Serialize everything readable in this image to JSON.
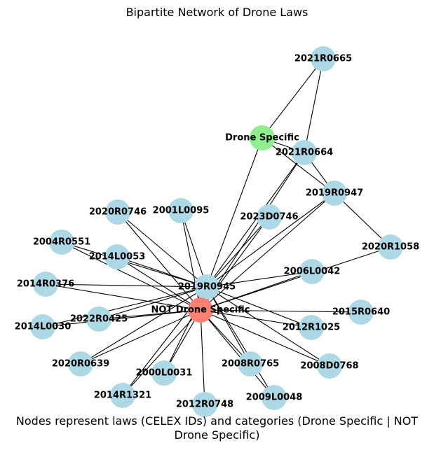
{
  "title": "Bipartite Network of Drone Laws",
  "caption_line1": "Nodes represent laws (CELEX IDs) and categories (Drone Specific | NOT",
  "caption_line2": "Drone Specific)",
  "colors": {
    "law_node": "#add8e6",
    "drone_specific": "#90ee90",
    "not_drone_specific": "#fa8072",
    "edge": "#000000"
  },
  "nodes": [
    {
      "id": "2021R0665",
      "category": "law"
    },
    {
      "id": "Drone Specific",
      "category": "drone_specific"
    },
    {
      "id": "2021R0664",
      "category": "law"
    },
    {
      "id": "2019R0947",
      "category": "law"
    },
    {
      "id": "2020R0746",
      "category": "law"
    },
    {
      "id": "2001L0095",
      "category": "law"
    },
    {
      "id": "2023D0746",
      "category": "law"
    },
    {
      "id": "2004R0551",
      "category": "law"
    },
    {
      "id": "2014L0053",
      "category": "law"
    },
    {
      "id": "2020R1058",
      "category": "law"
    },
    {
      "id": "2006L0042",
      "category": "law"
    },
    {
      "id": "2014R0376",
      "category": "law"
    },
    {
      "id": "2019R0945",
      "category": "law"
    },
    {
      "id": "NOT Drone Specific",
      "category": "not_drone_specific"
    },
    {
      "id": "2015R0640",
      "category": "law"
    },
    {
      "id": "2022R0425",
      "category": "law"
    },
    {
      "id": "2014L0030",
      "category": "law"
    },
    {
      "id": "2012R1025",
      "category": "law"
    },
    {
      "id": "2020R0639",
      "category": "law"
    },
    {
      "id": "2008R0765",
      "category": "law"
    },
    {
      "id": "2008D0768",
      "category": "law"
    },
    {
      "id": "2000L0031",
      "category": "law"
    },
    {
      "id": "2014R1321",
      "category": "law"
    },
    {
      "id": "2012R0748",
      "category": "law"
    },
    {
      "id": "2009L0048",
      "category": "law"
    }
  ],
  "edges": [
    [
      "Drone Specific",
      "2021R0665"
    ],
    [
      "Drone Specific",
      "2021R0664"
    ],
    [
      "Drone Specific",
      "2019R0947"
    ],
    [
      "Drone Specific",
      "2019R0945"
    ],
    [
      "2021R0665",
      "2021R0664"
    ],
    [
      "2021R0664",
      "2019R0947"
    ],
    [
      "2019R0947",
      "2020R1058"
    ],
    [
      "2021R0664",
      "2019R0945"
    ],
    [
      "2021R0664",
      "NOT Drone Specific"
    ],
    [
      "2019R0947",
      "2019R0945"
    ],
    [
      "2019R0947",
      "NOT Drone Specific"
    ],
    [
      "2023D0746",
      "2019R0945"
    ],
    [
      "2023D0746",
      "NOT Drone Specific"
    ],
    [
      "2020R1058",
      "NOT Drone Specific"
    ],
    [
      "2006L0042",
      "2019R0945"
    ],
    [
      "2006L0042",
      "NOT Drone Specific"
    ],
    [
      "2020R0746",
      "2019R0945"
    ],
    [
      "2020R0746",
      "NOT Drone Specific"
    ],
    [
      "2001L0095",
      "2019R0945"
    ],
    [
      "2001L0095",
      "NOT Drone Specific"
    ],
    [
      "2004R0551",
      "2019R0945"
    ],
    [
      "2004R0551",
      "NOT Drone Specific"
    ],
    [
      "2014L0053",
      "2019R0945"
    ],
    [
      "2014L0053",
      "NOT Drone Specific"
    ],
    [
      "2014R0376",
      "2019R0945"
    ],
    [
      "2014R0376",
      "NOT Drone Specific"
    ],
    [
      "2014L0030",
      "2019R0945"
    ],
    [
      "2014L0030",
      "NOT Drone Specific"
    ],
    [
      "2022R0425",
      "2019R0945"
    ],
    [
      "2022R0425",
      "NOT Drone Specific"
    ],
    [
      "2020R0639",
      "2019R0945"
    ],
    [
      "2020R0639",
      "NOT Drone Specific"
    ],
    [
      "2015R0640",
      "NOT Drone Specific"
    ],
    [
      "2012R1025",
      "NOT Drone Specific"
    ],
    [
      "2012R1025",
      "2019R0945"
    ],
    [
      "2008R0765",
      "2019R0945"
    ],
    [
      "2008R0765",
      "NOT Drone Specific"
    ],
    [
      "2008D0768",
      "2019R0945"
    ],
    [
      "2008D0768",
      "NOT Drone Specific"
    ],
    [
      "2000L0031",
      "NOT Drone Specific"
    ],
    [
      "2000L0031",
      "2019R0945"
    ],
    [
      "2014R1321",
      "NOT Drone Specific"
    ],
    [
      "2014R1321",
      "2019R0945"
    ],
    [
      "2012R0748",
      "NOT Drone Specific"
    ],
    [
      "2009L0048",
      "2019R0945"
    ],
    [
      "2009L0048",
      "NOT Drone Specific"
    ]
  ]
}
